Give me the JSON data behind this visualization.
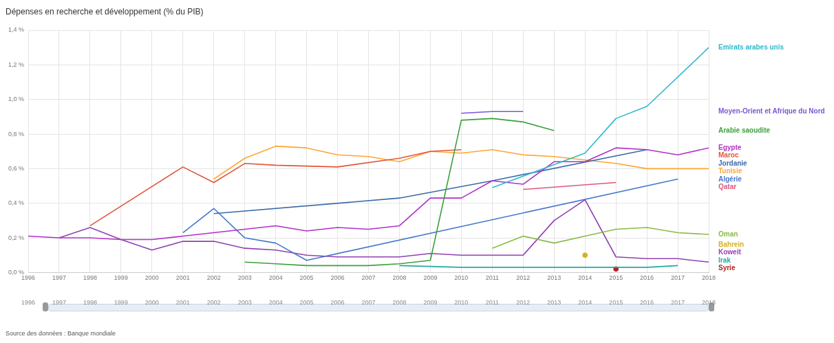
{
  "chart_data": {
    "type": "line",
    "title": "Dépenses en recherche et développement (% du PIB)",
    "xlim": [
      1996,
      2018
    ],
    "xticks": [
      1996,
      1997,
      1998,
      1999,
      2000,
      2001,
      2002,
      2003,
      2004,
      2005,
      2006,
      2007,
      2008,
      2009,
      2010,
      2011,
      2012,
      2013,
      2014,
      2015,
      2016,
      2017,
      2018
    ],
    "ylim": [
      0,
      1.4
    ],
    "yticks": [
      {
        "value": 0,
        "label": "0,0 %"
      },
      {
        "value": 0.2,
        "label": "0,2 %"
      },
      {
        "value": 0.4,
        "label": "0,4 %"
      },
      {
        "value": 0.6,
        "label": "0,6 %"
      },
      {
        "value": 0.8,
        "label": "0,8 %"
      },
      {
        "value": 1.0,
        "label": "1,0 %"
      },
      {
        "value": 1.2,
        "label": "1,2 %"
      },
      {
        "value": 1.4,
        "label": "1,4 %"
      }
    ],
    "x2lim": [
      1996,
      2018
    ],
    "x2ticks": [
      1996,
      1997,
      1998,
      1999,
      2000,
      2001,
      2002,
      2003,
      2004,
      2005,
      2006,
      2007,
      2008,
      2009,
      2010,
      2011,
      2012,
      2013,
      2014,
      2015,
      2016,
      2017,
      2018
    ],
    "grid": true,
    "legend": "right",
    "marker": "none",
    "annotations": [
      "Source des données : Banque mondiale"
    ],
    "series": [
      {
        "name": "Emirats arabes unis",
        "color": "#2eb8d0",
        "x": [
          2011,
          2014,
          2015,
          2016,
          2018
        ],
        "values": [
          0.49,
          0.69,
          0.89,
          0.96,
          1.3
        ]
      },
      {
        "name": "Moyen-Orient et Afrique du Nord",
        "color": "#7b55d6",
        "x": [
          2010,
          2011,
          2012
        ],
        "values": [
          0.92,
          0.93,
          0.93
        ]
      },
      {
        "name": "Arabie saoudite",
        "color": "#3aa03a",
        "x": [
          2003,
          2004,
          2005,
          2006,
          2007,
          2008,
          2009,
          2010,
          2011,
          2012,
          2013
        ],
        "values": [
          0.06,
          0.05,
          0.04,
          0.04,
          0.04,
          0.05,
          0.07,
          0.88,
          0.89,
          0.87,
          0.82
        ]
      },
      {
        "name": "Egypte",
        "color": "#b030c8",
        "x": [
          1996,
          1997,
          1998,
          1999,
          2000,
          2001,
          2002,
          2003,
          2004,
          2005,
          2006,
          2007,
          2008,
          2009,
          2010,
          2011,
          2012,
          2013,
          2014,
          2015,
          2016,
          2017,
          2018
        ],
        "values": [
          0.21,
          0.2,
          0.2,
          0.19,
          0.19,
          0.21,
          0.23,
          0.25,
          0.27,
          0.24,
          0.26,
          0.25,
          0.27,
          0.43,
          0.43,
          0.53,
          0.51,
          0.64,
          0.64,
          0.72,
          0.71,
          0.68,
          0.72
        ]
      },
      {
        "name": "Maroc",
        "color": "#e0553a",
        "x": [
          1998,
          2001,
          2002,
          2003,
          2004,
          2006,
          2008,
          2009,
          2010
        ],
        "values": [
          0.27,
          0.61,
          0.52,
          0.63,
          0.62,
          0.61,
          0.66,
          0.7,
          0.71
        ]
      },
      {
        "name": "Jordanie",
        "color": "#3a6aa8",
        "x": [
          2002,
          2008,
          2011,
          2016
        ],
        "values": [
          0.34,
          0.43,
          0.53,
          0.71
        ]
      },
      {
        "name": "Tunisie",
        "color": "#ffa530",
        "x": [
          2002,
          2003,
          2004,
          2005,
          2006,
          2007,
          2008,
          2009,
          2010,
          2011,
          2012,
          2013,
          2014,
          2015,
          2016,
          2017,
          2018
        ],
        "values": [
          0.54,
          0.66,
          0.73,
          0.72,
          0.68,
          0.67,
          0.64,
          0.7,
          0.69,
          0.71,
          0.68,
          0.67,
          0.65,
          0.63,
          0.6,
          0.6,
          0.6
        ]
      },
      {
        "name": "Algérie",
        "color": "#4477cc",
        "x": [
          2001,
          2002,
          2003,
          2004,
          2005,
          2017
        ],
        "values": [
          0.23,
          0.37,
          0.2,
          0.17,
          0.07,
          0.54
        ]
      },
      {
        "name": "Qatar",
        "color": "#e0557a",
        "x": [
          2012,
          2015
        ],
        "values": [
          0.48,
          0.52
        ]
      },
      {
        "name": "Oman",
        "color": "#88bb44",
        "x": [
          2011,
          2012,
          2013,
          2014,
          2015,
          2016,
          2017,
          2018
        ],
        "values": [
          0.14,
          0.21,
          0.17,
          0.21,
          0.25,
          0.26,
          0.23,
          0.22
        ]
      },
      {
        "name": "Bahrein",
        "color": "#d4b020",
        "marker": "circle",
        "x": [
          2014
        ],
        "values": [
          0.1
        ]
      },
      {
        "name": "Koweit",
        "color": "#9040b0",
        "x": [
          1997,
          1998,
          1999,
          2000,
          2001,
          2002,
          2003,
          2004,
          2005,
          2006,
          2008,
          2009,
          2010,
          2011,
          2012,
          2013,
          2014,
          2015,
          2016,
          2017,
          2018
        ],
        "values": [
          0.2,
          0.26,
          0.19,
          0.13,
          0.18,
          0.18,
          0.14,
          0.13,
          0.1,
          0.09,
          0.09,
          0.11,
          0.1,
          0.1,
          0.1,
          0.3,
          0.42,
          0.09,
          0.08,
          0.08,
          0.06
        ]
      },
      {
        "name": "Irak",
        "color": "#22a8a0",
        "x": [
          2008,
          2010,
          2015,
          2016,
          2017
        ],
        "values": [
          0.04,
          0.03,
          0.03,
          0.03,
          0.04
        ]
      },
      {
        "name": "Syrie",
        "color": "#b02222",
        "marker": "circle",
        "x": [
          2015
        ],
        "values": [
          0.02
        ]
      }
    ]
  }
}
